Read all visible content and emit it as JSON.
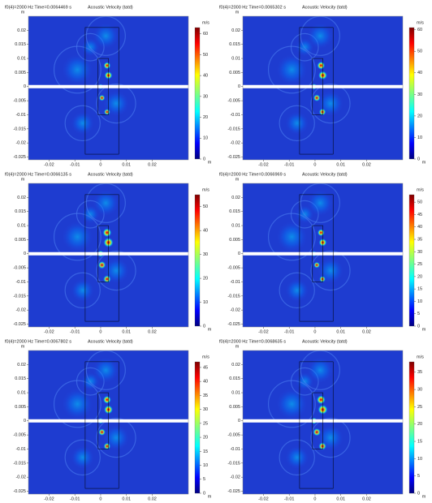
{
  "chart_data": [
    {
      "type": "field",
      "title": "f0(4)=2000 Hz Time=0.0064469 s",
      "subtitle": "Acoustic Velocity (tatd)",
      "x_unit": "m",
      "y_unit": "m",
      "colorbar_label": "m/s",
      "xlim": [
        -0.028,
        0.034
      ],
      "ylim": [
        -0.026,
        0.025
      ],
      "xticks": [
        -0.02,
        -0.01,
        0,
        0.01,
        0.02
      ],
      "yticks": [
        0.02,
        0.015,
        0.01,
        0.005,
        0,
        -0.005,
        -0.01,
        -0.015,
        -0.02,
        -0.025
      ],
      "clim": [
        0,
        63
      ],
      "cticks": [
        0,
        10,
        20,
        30,
        40,
        50,
        60
      ]
    },
    {
      "type": "field",
      "title": "f0(4)=2000 Hz Time=0.0065302 s",
      "subtitle": "Acoustic Velocity (tatd)",
      "x_unit": "m",
      "y_unit": "m",
      "colorbar_label": "m/s",
      "xlim": [
        -0.028,
        0.034
      ],
      "ylim": [
        -0.026,
        0.025
      ],
      "xticks": [
        -0.02,
        -0.01,
        0,
        0.01,
        0.02
      ],
      "yticks": [
        0.02,
        0.015,
        0.01,
        0.005,
        0,
        -0.005,
        -0.01,
        -0.015,
        -0.02,
        -0.025
      ],
      "clim": [
        0,
        61
      ],
      "cticks": [
        0,
        10,
        20,
        30,
        40,
        50,
        60
      ]
    },
    {
      "type": "field",
      "title": "f0(4)=2000 Hz Time=0.0066135 s",
      "subtitle": "Acoustic Velocity (tatd)",
      "x_unit": "m",
      "y_unit": "m",
      "colorbar_label": "m/s",
      "xlim": [
        -0.028,
        0.034
      ],
      "ylim": [
        -0.026,
        0.025
      ],
      "xticks": [
        -0.02,
        -0.01,
        0,
        0.01,
        0.02
      ],
      "yticks": [
        0.02,
        0.015,
        0.01,
        0.005,
        0,
        -0.005,
        -0.01,
        -0.015,
        -0.02,
        -0.025
      ],
      "clim": [
        0,
        55
      ],
      "cticks": [
        0,
        10,
        20,
        30,
        40,
        50
      ]
    },
    {
      "type": "field",
      "title": "f0(4)=2000 Hz Time=0.0066969 s",
      "subtitle": "Acoustic Velocity (tatd)",
      "x_unit": "m",
      "y_unit": "m",
      "colorbar_label": "m/s",
      "xlim": [
        -0.028,
        0.034
      ],
      "ylim": [
        -0.026,
        0.025
      ],
      "xticks": [
        -0.02,
        -0.01,
        0,
        0.01,
        0.02
      ],
      "yticks": [
        0.02,
        0.015,
        0.01,
        0.005,
        0,
        -0.005,
        -0.01,
        -0.015,
        -0.02,
        -0.025
      ],
      "clim": [
        0,
        53
      ],
      "cticks": [
        0,
        5,
        10,
        15,
        20,
        25,
        30,
        35,
        40,
        45,
        50
      ]
    },
    {
      "type": "field",
      "title": "f0(4)=2000 Hz Time=0.0067802 s",
      "subtitle": "Acoustic Velocity (tatd)",
      "x_unit": "m",
      "y_unit": "m",
      "colorbar_label": "m/s",
      "xlim": [
        -0.028,
        0.034
      ],
      "ylim": [
        -0.026,
        0.025
      ],
      "xticks": [
        -0.02,
        -0.01,
        0,
        0.01,
        0.02
      ],
      "yticks": [
        0.02,
        0.015,
        0.01,
        0.005,
        0,
        -0.005,
        -0.01,
        -0.015,
        -0.02,
        -0.025
      ],
      "clim": [
        0,
        47
      ],
      "cticks": [
        0,
        5,
        10,
        15,
        20,
        25,
        30,
        35,
        40,
        45
      ]
    },
    {
      "type": "field",
      "title": "f0(4)=2000 Hz Time=0.0068635 s",
      "subtitle": "Acoustic Velocity (tatd)",
      "x_unit": "m",
      "y_unit": "m",
      "colorbar_label": "m/s",
      "xlim": [
        -0.028,
        0.034
      ],
      "ylim": [
        -0.026,
        0.025
      ],
      "xticks": [
        -0.02,
        -0.01,
        0,
        0.01,
        0.02
      ],
      "yticks": [
        0.02,
        0.015,
        0.01,
        0.005,
        0,
        -0.005,
        -0.01,
        -0.015,
        -0.02,
        -0.025
      ],
      "clim": [
        0,
        38
      ],
      "cticks": [
        0,
        5,
        10,
        15,
        20,
        25,
        30,
        35
      ]
    }
  ]
}
